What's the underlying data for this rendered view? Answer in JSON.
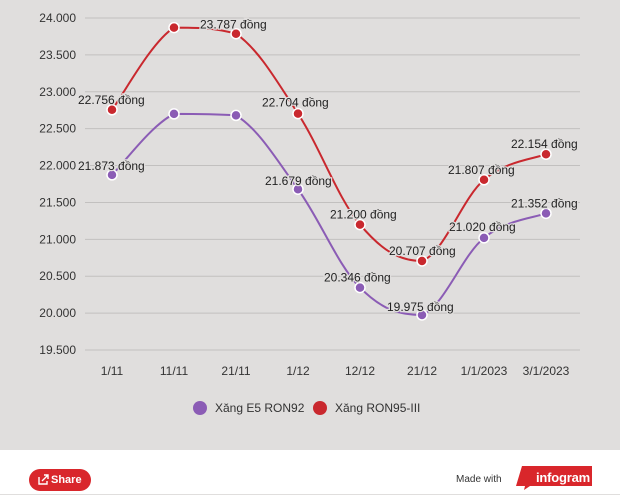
{
  "chart_data": {
    "type": "line",
    "categories": [
      "1/11",
      "11/11",
      "21/11",
      "1/12",
      "12/12",
      "21/12",
      "1/1/2023",
      "3/1/2023"
    ],
    "yticks": [
      "19.500",
      "20.000",
      "20.500",
      "21.000",
      "21.500",
      "22.000",
      "22.500",
      "23.000",
      "23.500",
      "24.000"
    ],
    "ylim": [
      19500,
      24000
    ],
    "grid": true,
    "legend_position": "bottom",
    "series": [
      {
        "name": "Xăng E5 RON92",
        "color": "#8b5cb5",
        "values": [
          21873,
          22700,
          22680,
          21679,
          20346,
          19975,
          21020,
          21352
        ],
        "labels": [
          "21.873 đồng",
          "",
          "",
          "21.679 đồng",
          "20.346 đồng",
          "19.975 đồng",
          "21.020 đồng",
          "21.352 đồng"
        ]
      },
      {
        "name": "Xăng RON95-III",
        "color": "#c9282e",
        "values": [
          22756,
          23870,
          23787,
          22704,
          21200,
          20707,
          21807,
          22154
        ],
        "labels": [
          "22.756 đồng",
          "",
          "23.787 đồng",
          "22.704 đồng",
          "21.200 đồng",
          "20.707 đồng",
          "21.807 đồng",
          "22.154 đồng"
        ]
      }
    ]
  },
  "footer": {
    "share_label": "Share",
    "made_with": "Made with",
    "brand": "infogram",
    "brand_color": "#d9262b"
  }
}
